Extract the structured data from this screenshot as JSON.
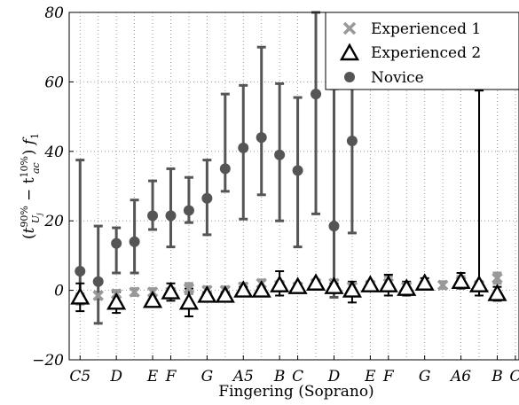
{
  "chart_data": {
    "type": "scatter",
    "title": "",
    "xlabel": "Fingering (Soprano)",
    "ylabel_parts": {
      "open": "(",
      "t": "t",
      "sup1": "90%",
      "sub1": "U",
      "subsub1": "j",
      "minus": " − t",
      "sup2": "10%",
      "sub2": "ac",
      "close": ")",
      "f": " f",
      "fsub": "1"
    },
    "ylim": [
      -20,
      80
    ],
    "yticks": [
      "−20",
      "0",
      "20",
      "40",
      "60",
      "80"
    ],
    "ytick_values": [
      -20,
      0,
      20,
      40,
      60,
      80
    ],
    "x_categories": [
      {
        "label": "C5",
        "x": 0
      },
      {
        "label": "D",
        "x": 2
      },
      {
        "label": "E",
        "x": 4
      },
      {
        "label": "F",
        "x": 5
      },
      {
        "label": "G",
        "x": 7
      },
      {
        "label": "A5",
        "x": 9
      },
      {
        "label": "B",
        "x": 11
      },
      {
        "label": "C",
        "x": 12
      },
      {
        "label": "D",
        "x": 14
      },
      {
        "label": "E",
        "x": 16
      },
      {
        "label": "F",
        "x": 17
      },
      {
        "label": "G",
        "x": 19
      },
      {
        "label": "A6",
        "x": 21
      },
      {
        "label": "B",
        "x": 23
      },
      {
        "label": "C",
        "x": 24
      }
    ],
    "xlim": [
      -0.6,
      24.2
    ],
    "grid": true,
    "legend_position": "top-right",
    "series": [
      {
        "name": "Experienced 1",
        "marker": "x",
        "color": "#999999",
        "points": [
          {
            "x": 0,
            "y": -2.5,
            "lo": -4,
            "hi": -1
          },
          {
            "x": 1,
            "y": -1.5,
            "lo": -2.5,
            "hi": -0.5
          },
          {
            "x": 2,
            "y": -1,
            "lo": -2,
            "hi": 0
          },
          {
            "x": 3,
            "y": -0.5,
            "lo": -1.5,
            "hi": 0.5
          },
          {
            "x": 4,
            "y": -0.5,
            "lo": -1.5,
            "hi": 0.5
          },
          {
            "x": 5,
            "y": -0.5,
            "lo": -1.5,
            "hi": 0.5
          },
          {
            "x": 6,
            "y": 0.5,
            "lo": -1,
            "hi": 2
          },
          {
            "x": 7,
            "y": 0,
            "lo": -1,
            "hi": 1
          },
          {
            "x": 8,
            "y": 0,
            "lo": -1,
            "hi": 1
          },
          {
            "x": 9,
            "y": 1,
            "lo": 0,
            "hi": 2
          },
          {
            "x": 10,
            "y": 2,
            "lo": 1,
            "hi": 3
          },
          {
            "x": 11,
            "y": 1.5,
            "lo": 0.5,
            "hi": 2.5
          },
          {
            "x": 12,
            "y": 1,
            "lo": 0,
            "hi": 2
          },
          {
            "x": 13,
            "y": 2,
            "lo": 1,
            "hi": 3
          },
          {
            "x": 14,
            "y": 2,
            "lo": 1,
            "hi": 3
          },
          {
            "x": 15,
            "y": 1,
            "lo": 0,
            "hi": 2
          },
          {
            "x": 16,
            "y": 1.5,
            "lo": 0.5,
            "hi": 2.5
          },
          {
            "x": 17,
            "y": 2,
            "lo": 0,
            "hi": 4
          },
          {
            "x": 18,
            "y": 1,
            "lo": 0,
            "hi": 2
          },
          {
            "x": 19,
            "y": 1.5,
            "lo": 0.5,
            "hi": 2.5
          },
          {
            "x": 20,
            "y": 1.5,
            "lo": 0.5,
            "hi": 2.5
          },
          {
            "x": 21,
            "y": 2.5,
            "lo": 1,
            "hi": 4
          },
          {
            "x": 22,
            "y": 1.5,
            "lo": 0.5,
            "hi": 2.5
          },
          {
            "x": 23,
            "y": 3.5,
            "lo": 2,
            "hi": 5
          }
        ]
      },
      {
        "name": "Experienced 2",
        "marker": "triangle",
        "color": "#000000",
        "points": [
          {
            "x": 0,
            "y": -2,
            "lo": -6,
            "hi": 2
          },
          {
            "x": 2,
            "y": -3.5,
            "lo": -6.5,
            "hi": -0.5
          },
          {
            "x": 4,
            "y": -3,
            "lo": -4.5,
            "hi": -1.5
          },
          {
            "x": 5,
            "y": -0.5,
            "lo": -3,
            "hi": 2
          },
          {
            "x": 6,
            "y": -3.5,
            "lo": -7.5,
            "hi": 0.5
          },
          {
            "x": 7,
            "y": -1.5,
            "lo": -2.5,
            "hi": -0.5
          },
          {
            "x": 8,
            "y": -1.5,
            "lo": -2.5,
            "hi": -0.5
          },
          {
            "x": 9,
            "y": 0,
            "lo": -1,
            "hi": 1
          },
          {
            "x": 10,
            "y": 0,
            "lo": -1,
            "hi": 1
          },
          {
            "x": 11,
            "y": 1.5,
            "lo": -1.5,
            "hi": 5.5
          },
          {
            "x": 12,
            "y": 1,
            "lo": 0,
            "hi": 2
          },
          {
            "x": 13,
            "y": 2,
            "lo": 1,
            "hi": 3
          },
          {
            "x": 14,
            "y": 1,
            "lo": 0,
            "hi": 2
          },
          {
            "x": 15,
            "y": 0,
            "lo": -3.5,
            "hi": 2.5
          },
          {
            "x": 16,
            "y": 1.5,
            "lo": 0.5,
            "hi": 2.5
          },
          {
            "x": 17,
            "y": 1.5,
            "lo": -1.5,
            "hi": 4.5
          },
          {
            "x": 18,
            "y": 0.5,
            "lo": -1.5,
            "hi": 2.5
          },
          {
            "x": 19,
            "y": 2,
            "lo": 0.5,
            "hi": 3.5
          },
          {
            "x": 21,
            "y": 2.5,
            "lo": 0.5,
            "hi": 5
          },
          {
            "x": 22,
            "y": 1.5,
            "lo": -1.5,
            "hi": 57.5
          },
          {
            "x": 23,
            "y": -1,
            "lo": -3,
            "hi": 1
          }
        ]
      },
      {
        "name": "Novice",
        "marker": "circle",
        "color": "#555555",
        "points": [
          {
            "x": 0,
            "y": 5.5,
            "lo": -2,
            "hi": 37.5
          },
          {
            "x": 1,
            "y": 2.5,
            "lo": -9.5,
            "hi": 18.5
          },
          {
            "x": 2,
            "y": 13.5,
            "lo": 5,
            "hi": 18
          },
          {
            "x": 3,
            "y": 14,
            "lo": 5,
            "hi": 26
          },
          {
            "x": 4,
            "y": 21.5,
            "lo": 17.5,
            "hi": 31.5
          },
          {
            "x": 5,
            "y": 21.5,
            "lo": 12.5,
            "hi": 35
          },
          {
            "x": 6,
            "y": 23,
            "lo": 19.5,
            "hi": 32.5
          },
          {
            "x": 7,
            "y": 26.5,
            "lo": 16,
            "hi": 37.5
          },
          {
            "x": 8,
            "y": 35,
            "lo": 28.5,
            "hi": 56.5
          },
          {
            "x": 9,
            "y": 41,
            "lo": 20.5,
            "hi": 59
          },
          {
            "x": 10,
            "y": 44,
            "lo": 27.5,
            "hi": 70
          },
          {
            "x": 11,
            "y": 39,
            "lo": 20,
            "hi": 59.5
          },
          {
            "x": 12,
            "y": 34.5,
            "lo": 12.5,
            "hi": 55.5
          },
          {
            "x": 13,
            "y": 56.5,
            "lo": 22,
            "hi": 80
          },
          {
            "x": 14,
            "y": 18.5,
            "lo": -2,
            "hi": 58
          },
          {
            "x": 15,
            "y": 43,
            "lo": 16.5,
            "hi": 60
          }
        ]
      }
    ]
  }
}
